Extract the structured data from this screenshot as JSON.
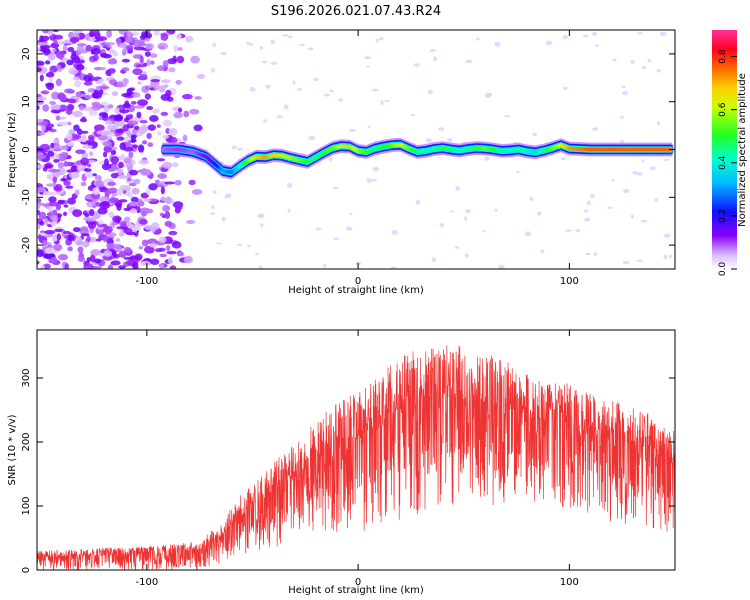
{
  "title": "S196.2026.021.07.43.R24",
  "chart_data": [
    {
      "type": "heatmap",
      "xlabel": "Height of straight line (km)",
      "ylabel": "Frequency (Hz)",
      "xlim": [
        -152,
        150
      ],
      "ylim": [
        -25,
        25
      ],
      "xticks": [
        -100,
        0,
        100
      ],
      "yticks": [
        -20,
        -10,
        0,
        10,
        20
      ],
      "colorbar": {
        "label": "Normalized spectral amplitude",
        "range": [
          0,
          0.9
        ],
        "ticks": [
          0.0,
          0.2,
          0.4,
          0.6,
          0.8
        ]
      },
      "ridge": {
        "description": "Doppler frequency ridge center (Hz) vs height (km)",
        "x": [
          -92,
          -85,
          -78,
          -72,
          -68,
          -64,
          -60,
          -56,
          -52,
          -48,
          -44,
          -40,
          -36,
          -32,
          -28,
          -24,
          -20,
          -16,
          -12,
          -8,
          -4,
          0,
          4,
          8,
          12,
          16,
          20,
          24,
          28,
          32,
          36,
          40,
          44,
          48,
          52,
          56,
          60,
          64,
          68,
          72,
          76,
          80,
          84,
          88,
          92,
          96,
          100,
          110,
          120,
          130,
          140,
          148
        ],
        "y": [
          0,
          0,
          -0.5,
          -1.5,
          -3,
          -4.5,
          -4.8,
          -3.5,
          -2.3,
          -1.5,
          -1.6,
          -1.2,
          -1.3,
          -1.8,
          -2.2,
          -2.6,
          -1.6,
          -0.6,
          0.3,
          0.7,
          0.6,
          -0.3,
          -0.5,
          0.2,
          0.6,
          0.9,
          1.0,
          0.2,
          -0.5,
          -0.3,
          0.1,
          0.3,
          0.0,
          -0.2,
          0.1,
          0.3,
          0.2,
          0.0,
          -0.3,
          -0.2,
          0.0,
          -0.4,
          -0.6,
          -0.2,
          0.3,
          0.9,
          0.2,
          0.0,
          0.0,
          0.0,
          0.0,
          0.0
        ],
        "amplitude": [
          0.1,
          0.12,
          0.1,
          0.15,
          0.2,
          0.35,
          0.3,
          0.45,
          0.6,
          0.75,
          0.8,
          0.75,
          0.7,
          0.65,
          0.6,
          0.55,
          0.5,
          0.55,
          0.6,
          0.7,
          0.75,
          0.65,
          0.55,
          0.5,
          0.55,
          0.6,
          0.7,
          0.6,
          0.5,
          0.45,
          0.5,
          0.55,
          0.5,
          0.45,
          0.5,
          0.55,
          0.6,
          0.55,
          0.5,
          0.45,
          0.5,
          0.45,
          0.4,
          0.5,
          0.6,
          0.7,
          0.8,
          0.85,
          0.85,
          0.85,
          0.85,
          0.85
        ]
      },
      "noise_region_x": [
        -152,
        -72
      ]
    },
    {
      "type": "line",
      "xlabel": "Height of straight line (km)",
      "ylabel": "SNR (10 * v/v)",
      "xlim": [
        -152,
        150
      ],
      "ylim": [
        0,
        375
      ],
      "xticks": [
        -100,
        0,
        100
      ],
      "yticks": [
        0,
        100,
        200,
        300
      ],
      "color": "#ee3333",
      "envelope": {
        "description": "Approximate upper/lower envelope of the dense SNR trace",
        "x": [
          -152,
          -120,
          -90,
          -75,
          -65,
          -55,
          -45,
          -35,
          -25,
          -15,
          -5,
          5,
          15,
          25,
          35,
          45,
          55,
          65,
          75,
          85,
          95,
          105,
          115,
          125,
          135,
          145,
          150
        ],
        "upper": [
          30,
          35,
          40,
          45,
          75,
          120,
          150,
          185,
          215,
          250,
          270,
          290,
          320,
          345,
          350,
          355,
          340,
          335,
          320,
          305,
          300,
          280,
          270,
          260,
          250,
          235,
          215
        ],
        "lower": [
          0,
          0,
          0,
          0,
          10,
          20,
          30,
          40,
          50,
          60,
          60,
          60,
          70,
          80,
          100,
          100,
          110,
          100,
          110,
          100,
          100,
          90,
          80,
          70,
          70,
          60,
          60
        ]
      }
    }
  ]
}
